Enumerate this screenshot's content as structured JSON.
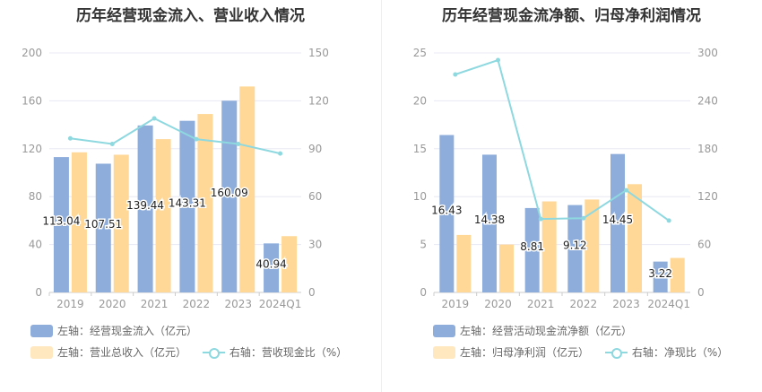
{
  "colors": {
    "bar_primary": "#8EADDB",
    "bar_secondary": "#FFD898",
    "line": "#8ED8E0",
    "axis_text": "#999999",
    "grid": "#E8E8F4"
  },
  "chart_data": [
    {
      "type": "bar",
      "title": "历年经营现金流入、营业收入情况",
      "categories": [
        "2019",
        "2020",
        "2021",
        "2022",
        "2023",
        "2024Q1"
      ],
      "left_axis": {
        "ylim": [
          0,
          200
        ],
        "ticks": [
          "0",
          "40",
          "80",
          "120",
          "160",
          "200"
        ]
      },
      "right_axis": {
        "ylim": [
          0,
          150
        ],
        "ticks": [
          "0",
          "30",
          "60",
          "90",
          "120",
          "150"
        ]
      },
      "series": [
        {
          "name": "左轴：经营现金流入（亿元）",
          "type": "bar",
          "axis": "left",
          "color": "#8EADDB",
          "values": [
            113.04,
            107.51,
            139.44,
            143.31,
            160.09,
            40.94
          ],
          "labels": [
            "113.04",
            "107.51",
            "139.44",
            "143.31",
            "160.09",
            "40.94"
          ]
        },
        {
          "name": "左轴：营业总收入（亿元）",
          "type": "bar",
          "axis": "left",
          "color": "#FFD898",
          "values": [
            117,
            115,
            128,
            149,
            172,
            47
          ]
        },
        {
          "name": "右轴：营收现金比（%）",
          "type": "line",
          "axis": "right",
          "color": "#8ED8E0",
          "values": [
            96.5,
            93,
            109,
            96,
            93,
            87
          ]
        }
      ],
      "grid": true,
      "legend_position": "bottom"
    },
    {
      "type": "bar",
      "title": "历年经营现金流净额、归母净利润情况",
      "categories": [
        "2019",
        "2020",
        "2021",
        "2022",
        "2023",
        "2024Q1"
      ],
      "left_axis": {
        "ylim": [
          0,
          25
        ],
        "ticks": [
          "0",
          "5",
          "10",
          "15",
          "20",
          "25"
        ]
      },
      "right_axis": {
        "ylim": [
          0,
          300
        ],
        "ticks": [
          "0",
          "60",
          "120",
          "180",
          "240",
          "300"
        ]
      },
      "series": [
        {
          "name": "左轴：经营活动现金流净额（亿元）",
          "type": "bar",
          "axis": "left",
          "color": "#8EADDB",
          "values": [
            16.43,
            14.38,
            8.81,
            9.12,
            14.45,
            3.22
          ],
          "labels": [
            "16.43",
            "14.38",
            "8.81",
            "9.12",
            "14.45",
            "3.22"
          ]
        },
        {
          "name": "左轴：归母净利润（亿元）",
          "type": "bar",
          "axis": "left",
          "color": "#FFD898",
          "values": [
            6,
            5,
            9.5,
            9.7,
            11.3,
            3.6
          ]
        },
        {
          "name": "右轴：净现比（%）",
          "type": "line",
          "axis": "right",
          "color": "#8ED8E0",
          "values": [
            273,
            291,
            92,
            93,
            128,
            90
          ]
        }
      ],
      "grid": true,
      "legend_position": "bottom"
    }
  ]
}
